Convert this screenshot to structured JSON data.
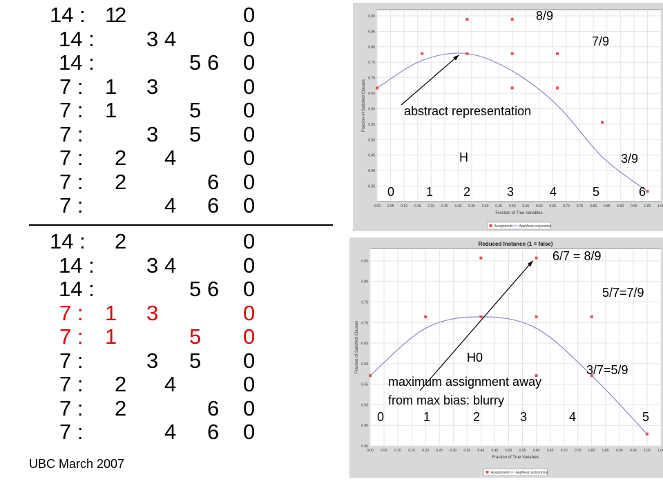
{
  "clause_groups": [
    {
      "lines": [
        {
          "w": "14 :",
          "a": "1",
          "b": "2",
          "c": "",
          "d": "",
          "e": "",
          "f": "",
          "z": "0",
          "red": false
        },
        {
          "w": "14 :",
          "a": "",
          "b": "",
          "c": "3",
          "d": "4",
          "e": "",
          "f": "",
          "z": "0",
          "red": false
        },
        {
          "w": "14 :",
          "a": "",
          "b": "",
          "c": "",
          "d": "",
          "e": "5",
          "f": "6",
          "z": "0",
          "red": false
        },
        {
          "w": "7 :",
          "a": "1",
          "b": "",
          "c": "3",
          "d": "",
          "e": "",
          "f": "",
          "z": "0",
          "red": false
        },
        {
          "w": "7 :",
          "a": "1",
          "b": "",
          "c": "",
          "d": "",
          "e": "5",
          "f": "",
          "z": "0",
          "red": false
        },
        {
          "w": "7 :",
          "a": "",
          "b": "",
          "c": "3",
          "d": "",
          "e": "5",
          "f": "",
          "z": "0",
          "red": false
        },
        {
          "w": "7 :",
          "a": "",
          "b": "2",
          "c": "",
          "d": "4",
          "e": "",
          "f": "",
          "z": "0",
          "red": false
        },
        {
          "w": "7 :",
          "a": "",
          "b": "2",
          "c": "",
          "d": "",
          "e": "",
          "f": "6",
          "z": "0",
          "red": false
        },
        {
          "w": "7 :",
          "a": "",
          "b": "",
          "c": "",
          "d": "4",
          "e": "",
          "f": "6",
          "z": "0",
          "red": false
        }
      ]
    },
    {
      "lines": [
        {
          "w": "14 :",
          "a": "",
          "b": "2",
          "c": "",
          "d": "",
          "e": "",
          "f": "",
          "z": "0",
          "red": false
        },
        {
          "w": "14 :",
          "a": "",
          "b": "",
          "c": "3",
          "d": "4",
          "e": "",
          "f": "",
          "z": "0",
          "red": false
        },
        {
          "w": "14 :",
          "a": "",
          "b": "",
          "c": "",
          "d": "",
          "e": "5",
          "f": "6",
          "z": "0",
          "red": false
        },
        {
          "w": "7 :",
          "a": "1",
          "b": "",
          "c": "3",
          "d": "",
          "e": "",
          "f": "",
          "z": "0",
          "red": true
        },
        {
          "w": "7 :",
          "a": "1",
          "b": "",
          "c": "",
          "d": "",
          "e": "5",
          "f": "",
          "z": "0",
          "red": true
        },
        {
          "w": "7 :",
          "a": "",
          "b": "",
          "c": "3",
          "d": "",
          "e": "5",
          "f": "",
          "z": "0",
          "red": false
        },
        {
          "w": "7 :",
          "a": "",
          "b": "2",
          "c": "",
          "d": "4",
          "e": "",
          "f": "",
          "z": "0",
          "red": false
        },
        {
          "w": "7 :",
          "a": "",
          "b": "2",
          "c": "",
          "d": "",
          "e": "",
          "f": "6",
          "z": "0",
          "red": false
        },
        {
          "w": "7 :",
          "a": "",
          "b": "",
          "c": "",
          "d": "4",
          "e": "",
          "f": "6",
          "z": "0",
          "red": false
        }
      ]
    }
  ],
  "footer": "UBC March 2007",
  "colors": {
    "red_text": "#e00000",
    "marker": "#e05050",
    "curve": "#8888cc",
    "plot_bg": "#d8d8d8",
    "arrow": "#000000"
  },
  "chart_data": [
    {
      "type": "scatter",
      "title": "",
      "xlabel": "Fraction of True Variables",
      "ylabel": "Fraction of Satisfied Clauses",
      "xlim": [
        0.0,
        1.05
      ],
      "ylim": [
        0.3,
        0.92
      ],
      "xticks": [
        "0.00",
        "0.05",
        "0.10",
        "0.15",
        "0.20",
        "0.25",
        "0.30",
        "0.35",
        "0.40",
        "0.45",
        "0.50",
        "0.55",
        "0.60",
        "0.65",
        "0.70",
        "0.75",
        "0.80",
        "0.85",
        "0.90",
        "0.95",
        "1.00",
        "1.05"
      ],
      "yticks": [
        "0.35",
        "0.40",
        "0.45",
        "0.50",
        "0.55",
        "0.60",
        "0.65",
        "0.70",
        "0.75",
        "0.80",
        "0.85",
        "0.90"
      ],
      "legend": [
        "Assignment",
        "AppMean polynomial"
      ],
      "series": [
        {
          "name": "Assignment",
          "points": [
            [
              0.0,
              0.667
            ],
            [
              0.1667,
              0.778
            ],
            [
              0.3333,
              0.889
            ],
            [
              0.3333,
              0.778
            ],
            [
              0.5,
              0.889
            ],
            [
              0.5,
              0.778
            ],
            [
              0.5,
              0.667
            ],
            [
              0.6667,
              0.778
            ],
            [
              0.6667,
              0.667
            ],
            [
              0.8333,
              0.556
            ],
            [
              1.0,
              0.333
            ]
          ]
        },
        {
          "name": "AppMean polynomial",
          "curve": [
            [
              0.0,
              0.667
            ],
            [
              0.1667,
              0.756
            ],
            [
              0.3333,
              0.778
            ],
            [
              0.5,
              0.722
            ],
            [
              0.6667,
              0.611
            ],
            [
              0.8333,
              0.444
            ],
            [
              1.0,
              0.333
            ]
          ]
        }
      ],
      "overlay": {
        "numbers": [
          "0",
          "1",
          "2",
          "3",
          "4",
          "5",
          "6"
        ],
        "labels": [
          "8/9",
          "7/9",
          "abstract representation",
          "H",
          "3/9"
        ]
      }
    },
    {
      "type": "scatter",
      "title": "Reduced Instance (1 = false)",
      "xlabel": "Fraction of True Variables",
      "ylabel": "Fraction of Satisfied Clauses",
      "xlim": [
        0.0,
        1.05
      ],
      "ylim": [
        0.4,
        0.88
      ],
      "xticks": [
        "0.00",
        "0.05",
        "0.10",
        "0.15",
        "0.20",
        "0.25",
        "0.30",
        "0.35",
        "0.40",
        "0.45",
        "0.50",
        "0.55",
        "0.60",
        "0.65",
        "0.70",
        "0.75",
        "0.80",
        "0.85",
        "0.90",
        "0.95",
        "1.00",
        "1.05"
      ],
      "yticks": [
        "0.40",
        "0.45",
        "0.50",
        "0.55",
        "0.60",
        "0.65",
        "0.70",
        "0.75",
        "0.80",
        "0.85"
      ],
      "legend": [
        "Assignment",
        "AppMean polynomial"
      ],
      "series": [
        {
          "name": "Assignment",
          "points": [
            [
              0.0,
              0.571
            ],
            [
              0.2,
              0.714
            ],
            [
              0.4,
              0.857
            ],
            [
              0.4,
              0.714
            ],
            [
              0.6,
              0.857
            ],
            [
              0.6,
              0.714
            ],
            [
              0.6,
              0.571
            ],
            [
              0.8,
              0.714
            ],
            [
              0.8,
              0.571
            ],
            [
              1.0,
              0.429
            ]
          ]
        },
        {
          "name": "AppMean polynomial",
          "curve": [
            [
              0.0,
              0.571
            ],
            [
              0.2,
              0.686
            ],
            [
              0.4,
              0.714
            ],
            [
              0.6,
              0.686
            ],
            [
              0.8,
              0.571
            ],
            [
              1.0,
              0.429
            ]
          ]
        }
      ],
      "overlay": {
        "numbers": [
          "0",
          "1",
          "2",
          "3",
          "4",
          "5"
        ],
        "labels": [
          "6/7 = 8/9",
          "5/7=7/9",
          "H0",
          "3/7=5/9",
          "maximum assignment away",
          "from max bias: blurry"
        ]
      }
    }
  ]
}
